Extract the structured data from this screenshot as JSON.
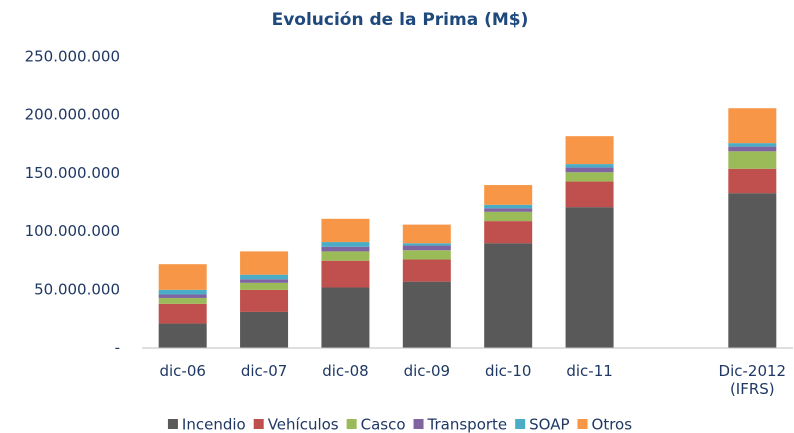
{
  "chart_data": {
    "type": "stacked_bar",
    "title": "Evolución de la Prima (M$)",
    "categories": [
      "dic-06",
      "dic-07",
      "dic-08",
      "dic-09",
      "dic-10",
      "dic-11",
      null,
      "Dic-2012 (IFRS)"
    ],
    "series": [
      {
        "name": "Incendio",
        "color": "#595959",
        "values": [
          21000000,
          31000000,
          52000000,
          57000000,
          90000000,
          121000000,
          null,
          133000000
        ]
      },
      {
        "name": "Vehículos",
        "color": "#c0504d",
        "values": [
          17000000,
          19000000,
          23000000,
          19000000,
          19000000,
          22000000,
          null,
          21000000
        ]
      },
      {
        "name": "Casco",
        "color": "#9bbb59",
        "values": [
          5000000,
          6000000,
          8000000,
          8000000,
          8000000,
          8000000,
          null,
          15000000
        ]
      },
      {
        "name": "Transporte",
        "color": "#8064a2",
        "values": [
          3000000,
          3000000,
          4000000,
          4000000,
          3000000,
          4000000,
          null,
          4000000
        ]
      },
      {
        "name": "SOAP",
        "color": "#4bacc6",
        "values": [
          4000000,
          4000000,
          4000000,
          2000000,
          3000000,
          3000000,
          null,
          3000000
        ]
      },
      {
        "name": "Otros",
        "color": "#f79646",
        "values": [
          22000000,
          20000000,
          20000000,
          16000000,
          17000000,
          24000000,
          null,
          30000000
        ]
      }
    ],
    "ylim": [
      0,
      250000000
    ],
    "yticks": [
      {
        "value": 0,
        "label": "-"
      },
      {
        "value": 50000000,
        "label": "50.000.000"
      },
      {
        "value": 100000000,
        "label": "100.000.000"
      },
      {
        "value": 150000000,
        "label": "150.000.000"
      },
      {
        "value": 200000000,
        "label": "200.000.000"
      },
      {
        "value": 250000000,
        "label": "250.000.000"
      }
    ],
    "grid": false,
    "legend": "bottom"
  }
}
